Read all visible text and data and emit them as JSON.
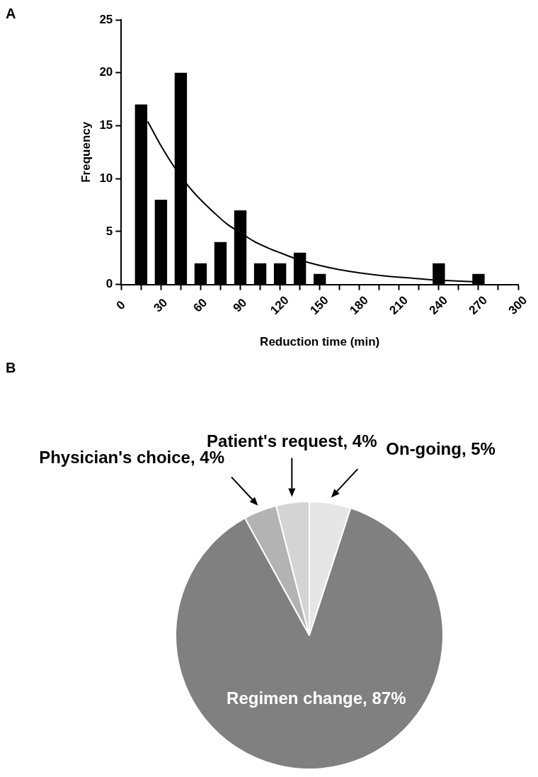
{
  "chart_data": [
    {
      "type": "bar",
      "title": "A",
      "xlabel": "Reduction time (min)",
      "ylabel": "Frequency",
      "xlim": [
        0,
        300
      ],
      "xticks": [
        0,
        {
          "value": 15,
          "label": null
        },
        30,
        {
          "value": 45,
          "label": null
        },
        60,
        {
          "value": 75,
          "label": null
        },
        90,
        {
          "value": 105,
          "label": null
        },
        120,
        {
          "value": 135,
          "label": null
        },
        150,
        {
          "value": 165,
          "label": null
        },
        180,
        {
          "value": 195,
          "label": null
        },
        210,
        {
          "value": 225,
          "label": null
        },
        240,
        {
          "value": 255,
          "label": null
        },
        270,
        {
          "value": 285,
          "label": null
        },
        300
      ],
      "ylim": [
        0,
        25
      ],
      "yticks": [
        0,
        5,
        10,
        15,
        20,
        25
      ],
      "grid": false,
      "legend": false,
      "series": [
        {
          "type": "bar",
          "color": "#000000",
          "x": [
            15,
            30,
            45,
            60,
            75,
            90,
            105,
            120,
            135,
            150,
            240,
            270
          ],
          "values": [
            17,
            8,
            20,
            2,
            4,
            7,
            2,
            2,
            3,
            1,
            2,
            1
          ]
        },
        {
          "type": "line",
          "color": "#000000",
          "marker": "none",
          "x": [
            20,
            30,
            40,
            50,
            60,
            70,
            80,
            90,
            100,
            110,
            120,
            135,
            150,
            165,
            180,
            200,
            220,
            240,
            270
          ],
          "values": [
            15.4,
            13.1,
            11.1,
            9.4,
            8.0,
            6.8,
            5.7,
            4.9,
            4.1,
            3.5,
            3.0,
            2.3,
            1.8,
            1.4,
            1.1,
            0.8,
            0.6,
            0.4,
            0.25
          ]
        }
      ]
    },
    {
      "type": "pie",
      "title": "B",
      "legend": false,
      "categories": [
        "On-going, 5%",
        "Regimen change, 87%",
        "Physician's choice, 4%",
        "Patient's request, 4%"
      ],
      "values": [
        5,
        87,
        4,
        4
      ],
      "colors": [
        "#e6e6e6",
        "#808080",
        "#b3b3b3",
        "#d4d4d4"
      ]
    }
  ]
}
